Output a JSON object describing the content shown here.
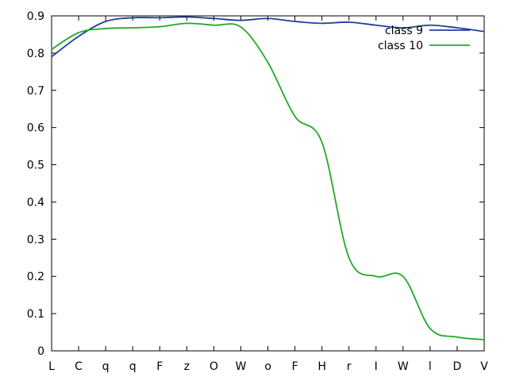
{
  "chart_data": {
    "type": "line",
    "title": "",
    "xlabel": "",
    "ylabel": "",
    "categories": [
      "L",
      "C",
      "q",
      "q",
      "F",
      "z",
      "O",
      "W",
      "o",
      "F",
      "H",
      "r",
      "I",
      "W",
      "l",
      "D",
      "V"
    ],
    "ylim": [
      0,
      0.9
    ],
    "yticks": [
      "0",
      "0.1",
      "0.2",
      "0.3",
      "0.4",
      "0.5",
      "0.6",
      "0.7",
      "0.8",
      "0.9"
    ],
    "grid": false,
    "legend": "top-right",
    "series": [
      {
        "name": "class 9",
        "color": "#1f3f99",
        "values": [
          0.79,
          0.845,
          0.885,
          0.895,
          0.895,
          0.897,
          0.893,
          0.888,
          0.893,
          0.885,
          0.88,
          0.883,
          0.875,
          0.868,
          0.875,
          0.868,
          0.858
        ]
      },
      {
        "name": "class 10",
        "color": "#22a829",
        "values": [
          0.81,
          0.855,
          0.866,
          0.868,
          0.871,
          0.88,
          0.875,
          0.87,
          0.775,
          0.63,
          0.56,
          0.25,
          0.2,
          0.2,
          0.06,
          0.037,
          0.03
        ]
      }
    ]
  }
}
